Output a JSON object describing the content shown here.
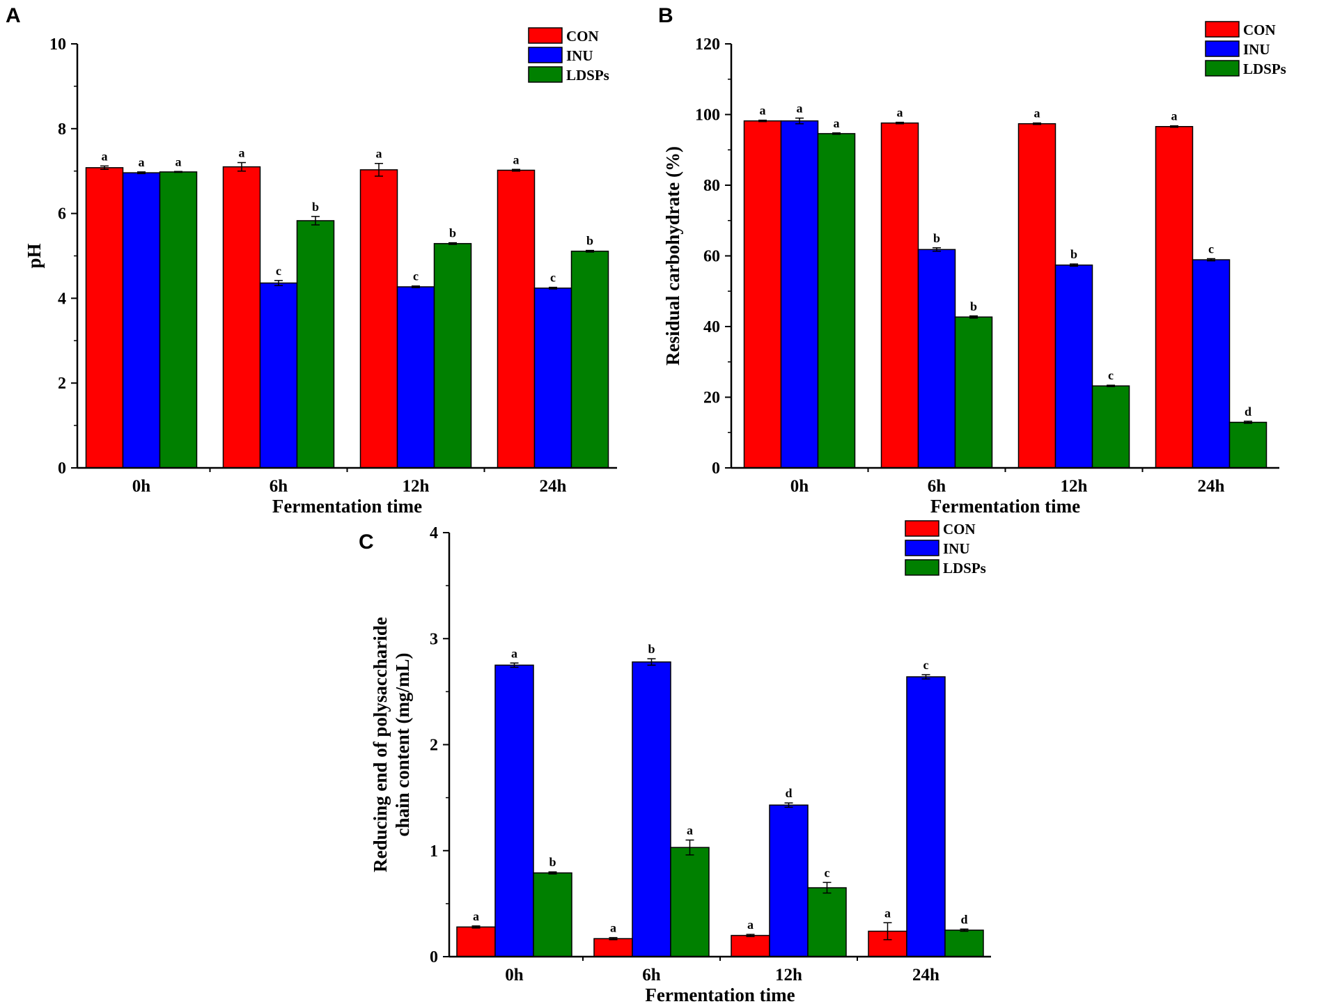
{
  "colors": {
    "CON": "#ff0000",
    "INU": "#0000ff",
    "LDSPs": "#008000"
  },
  "chart_data": [
    {
      "panel": "A",
      "type": "bar",
      "categories": [
        "0h",
        "6h",
        "12h",
        "24h"
      ],
      "xlabel": "Fermentation time",
      "ylabel": [
        "pH"
      ],
      "ylim": [
        0,
        10
      ],
      "yticks": [
        0,
        2,
        4,
        6,
        8,
        10
      ],
      "legend": {
        "placement": "top-right",
        "entries": [
          "CON",
          "INU",
          "LDSPs"
        ]
      },
      "series": [
        {
          "name": "CON",
          "values": [
            7.08,
            7.1,
            7.03,
            7.02
          ],
          "errors": [
            0.04,
            0.1,
            0.15,
            0.02
          ],
          "labels": [
            "a",
            "a",
            "a",
            "a"
          ]
        },
        {
          "name": "INU",
          "values": [
            6.96,
            4.36,
            4.27,
            4.24
          ],
          "errors": [
            0.02,
            0.06,
            0.02,
            0.02
          ],
          "labels": [
            "a",
            "c",
            "c",
            "c"
          ]
        },
        {
          "name": "LDSPs",
          "values": [
            6.98,
            5.83,
            5.29,
            5.11
          ],
          "errors": [
            0.01,
            0.1,
            0.02,
            0.02
          ],
          "labels": [
            "a",
            "b",
            "b",
            "b"
          ]
        }
      ]
    },
    {
      "panel": "B",
      "type": "bar",
      "categories": [
        "0h",
        "6h",
        "12h",
        "24h"
      ],
      "xlabel": "Fermentation time",
      "ylabel": [
        "Residual carbohydrate (%)"
      ],
      "ylim": [
        0,
        120
      ],
      "yticks": [
        0,
        20,
        40,
        60,
        80,
        100,
        120
      ],
      "legend": {
        "placement": "top-right",
        "entries": [
          "CON",
          "INU",
          "LDSPs"
        ]
      },
      "series": [
        {
          "name": "CON",
          "values": [
            98.2,
            97.6,
            97.4,
            96.6
          ],
          "errors": [
            0.2,
            0.2,
            0.2,
            0.2
          ],
          "labels": [
            "a",
            "a",
            "a",
            "a"
          ]
        },
        {
          "name": "INU",
          "values": [
            98.2,
            61.8,
            57.4,
            58.9
          ],
          "errors": [
            0.8,
            0.5,
            0.3,
            0.3
          ],
          "labels": [
            "a",
            "b",
            "b",
            "c"
          ]
        },
        {
          "name": "LDSPs",
          "values": [
            94.6,
            42.7,
            23.2,
            12.9
          ],
          "errors": [
            0.2,
            0.3,
            0.2,
            0.3
          ],
          "labels": [
            "a",
            "b",
            "c",
            "d"
          ]
        }
      ]
    },
    {
      "panel": "C",
      "type": "bar",
      "categories": [
        "0h",
        "6h",
        "12h",
        "24h"
      ],
      "xlabel": "Fermentation time",
      "ylabel": [
        "Reducing end of polysaccharide",
        "chain content (mg/mL)"
      ],
      "ylim": [
        0,
        4
      ],
      "yticks": [
        0,
        1,
        2,
        3,
        4
      ],
      "legend": {
        "placement": "top-right",
        "entries": [
          "CON",
          "INU",
          "LDSPs"
        ]
      },
      "series": [
        {
          "name": "CON",
          "values": [
            0.28,
            0.17,
            0.2,
            0.24
          ],
          "errors": [
            0.01,
            0.01,
            0.01,
            0.08
          ],
          "labels": [
            "a",
            "a",
            "a",
            "a"
          ]
        },
        {
          "name": "INU",
          "values": [
            2.75,
            2.78,
            1.43,
            2.64
          ],
          "errors": [
            0.02,
            0.03,
            0.02,
            0.02
          ],
          "labels": [
            "a",
            "b",
            "d",
            "c"
          ]
        },
        {
          "name": "LDSPs",
          "values": [
            0.79,
            1.03,
            0.65,
            0.25
          ],
          "errors": [
            0.01,
            0.07,
            0.05,
            0.01
          ],
          "labels": [
            "b",
            "a",
            "c",
            "d"
          ]
        }
      ]
    }
  ]
}
